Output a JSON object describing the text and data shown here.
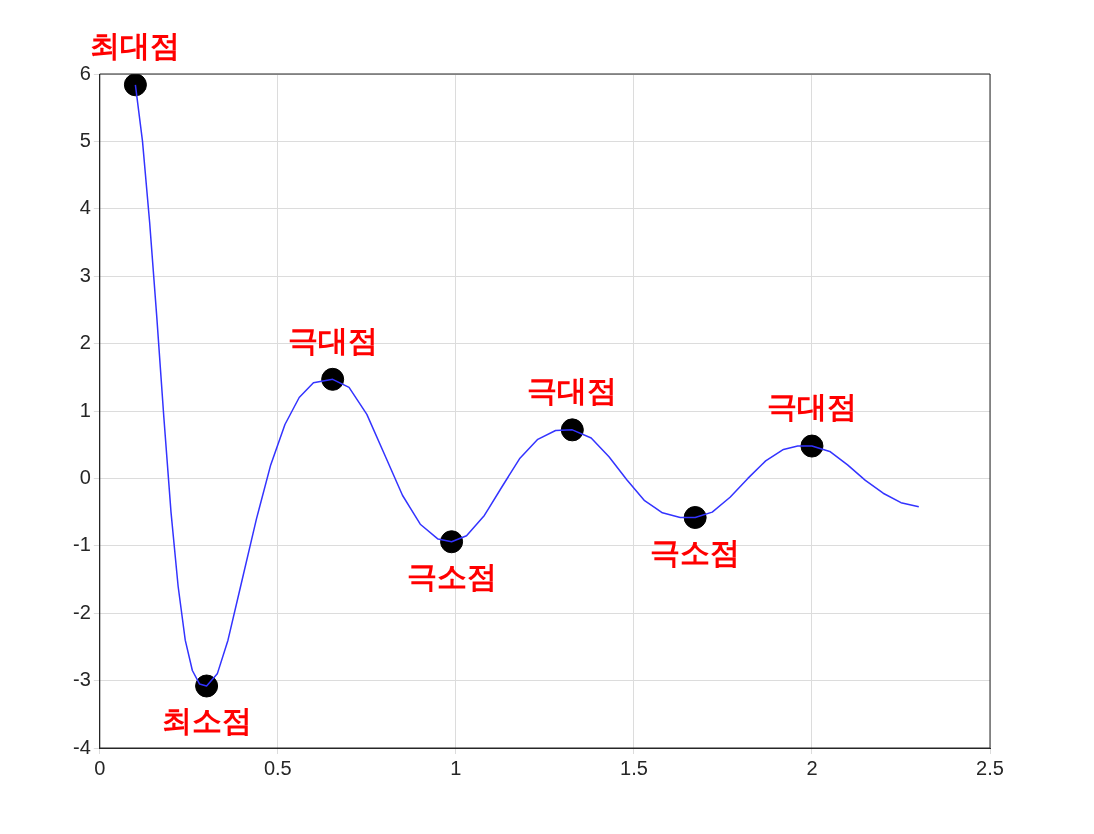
{
  "chart_data": {
    "type": "line",
    "xlim": [
      0,
      2.5
    ],
    "ylim": [
      -4,
      6
    ],
    "xticks": [
      0,
      0.5,
      1,
      1.5,
      2,
      2.5
    ],
    "yticks": [
      -4,
      -3,
      -2,
      -1,
      0,
      1,
      2,
      3,
      4,
      5,
      6
    ],
    "grid": true,
    "series": [
      {
        "type": "line",
        "color": "#3333ff",
        "x": [
          0.1,
          0.12,
          0.14,
          0.16,
          0.18,
          0.2,
          0.22,
          0.24,
          0.26,
          0.28,
          0.3,
          0.33,
          0.36,
          0.4,
          0.44,
          0.48,
          0.52,
          0.56,
          0.6,
          0.654,
          0.7,
          0.75,
          0.8,
          0.85,
          0.9,
          0.95,
          0.988,
          1.03,
          1.08,
          1.13,
          1.18,
          1.23,
          1.28,
          1.327,
          1.38,
          1.43,
          1.48,
          1.53,
          1.58,
          1.63,
          1.672,
          1.72,
          1.77,
          1.82,
          1.87,
          1.92,
          1.96,
          2.0,
          2.05,
          2.1,
          2.15,
          2.2,
          2.25,
          2.3
        ],
        "values": [
          5.84,
          5.0,
          3.8,
          2.4,
          0.9,
          -0.5,
          -1.6,
          -2.4,
          -2.85,
          -3.05,
          -3.08,
          -2.9,
          -2.4,
          -1.5,
          -0.6,
          0.2,
          0.8,
          1.2,
          1.42,
          1.47,
          1.35,
          0.95,
          0.35,
          -0.25,
          -0.68,
          -0.9,
          -0.94,
          -0.85,
          -0.55,
          -0.12,
          0.3,
          0.58,
          0.71,
          0.72,
          0.6,
          0.32,
          -0.02,
          -0.33,
          -0.51,
          -0.58,
          -0.58,
          -0.5,
          -0.28,
          0.0,
          0.26,
          0.43,
          0.48,
          0.48,
          0.4,
          0.2,
          -0.03,
          -0.22,
          -0.36,
          -0.42
        ]
      },
      {
        "type": "scatter",
        "color": "#000000",
        "marker": "circle",
        "x": [
          0.1,
          0.3,
          0.654,
          0.988,
          1.327,
          1.672,
          2.0
        ],
        "values": [
          5.84,
          -3.08,
          1.47,
          -0.94,
          0.72,
          -0.58,
          0.48
        ]
      }
    ],
    "annotations": [
      {
        "text": "최대점",
        "x": 0.1,
        "y": 5.84
      },
      {
        "text": "최소점",
        "x": 0.3,
        "y": -3.08
      },
      {
        "text": "극대점",
        "x": 0.654,
        "y": 1.47
      },
      {
        "text": "극소점",
        "x": 0.988,
        "y": -0.94
      },
      {
        "text": "극대점",
        "x": 1.327,
        "y": 0.72
      },
      {
        "text": "극소점",
        "x": 1.672,
        "y": -0.58
      },
      {
        "text": "극대점",
        "x": 2.0,
        "y": 0.48
      }
    ]
  }
}
